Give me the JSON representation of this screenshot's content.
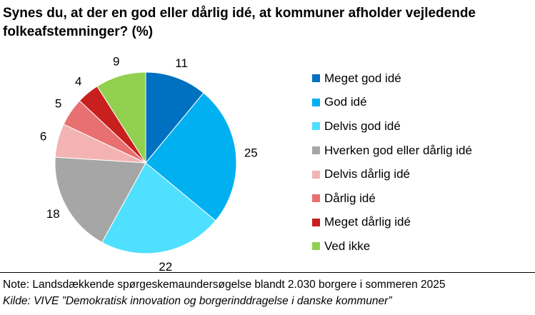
{
  "chart_data": {
    "type": "pie",
    "title": "Synes du, at der en god eller dårlig idé, at kommuner afholder vejledende folkeafstemninger? (%)",
    "categories": [
      "Meget god idé",
      "God idé",
      "Delvis god idé",
      "Hverken god eller dårlig idé",
      "Delvis dårlig idé",
      "Dårlig idé",
      "Meget dårlig idé",
      "Ved ikke"
    ],
    "values": [
      11,
      25,
      22,
      18,
      6,
      5,
      4,
      9
    ],
    "colors": [
      "#0070c0",
      "#00b0f0",
      "#4fe0ff",
      "#a6a6a6",
      "#f4b3b3",
      "#e87070",
      "#c8201e",
      "#92d050"
    ],
    "legend_position": "right"
  },
  "footer": {
    "note": "Note: Landsdækkende spørgeskemaundersøgelse blandt 2.030 borgere i sommeren 2025",
    "source": "Kilde: VIVE ”Demokratisk innovation og borgerinddragelse i danske kommuner”"
  }
}
